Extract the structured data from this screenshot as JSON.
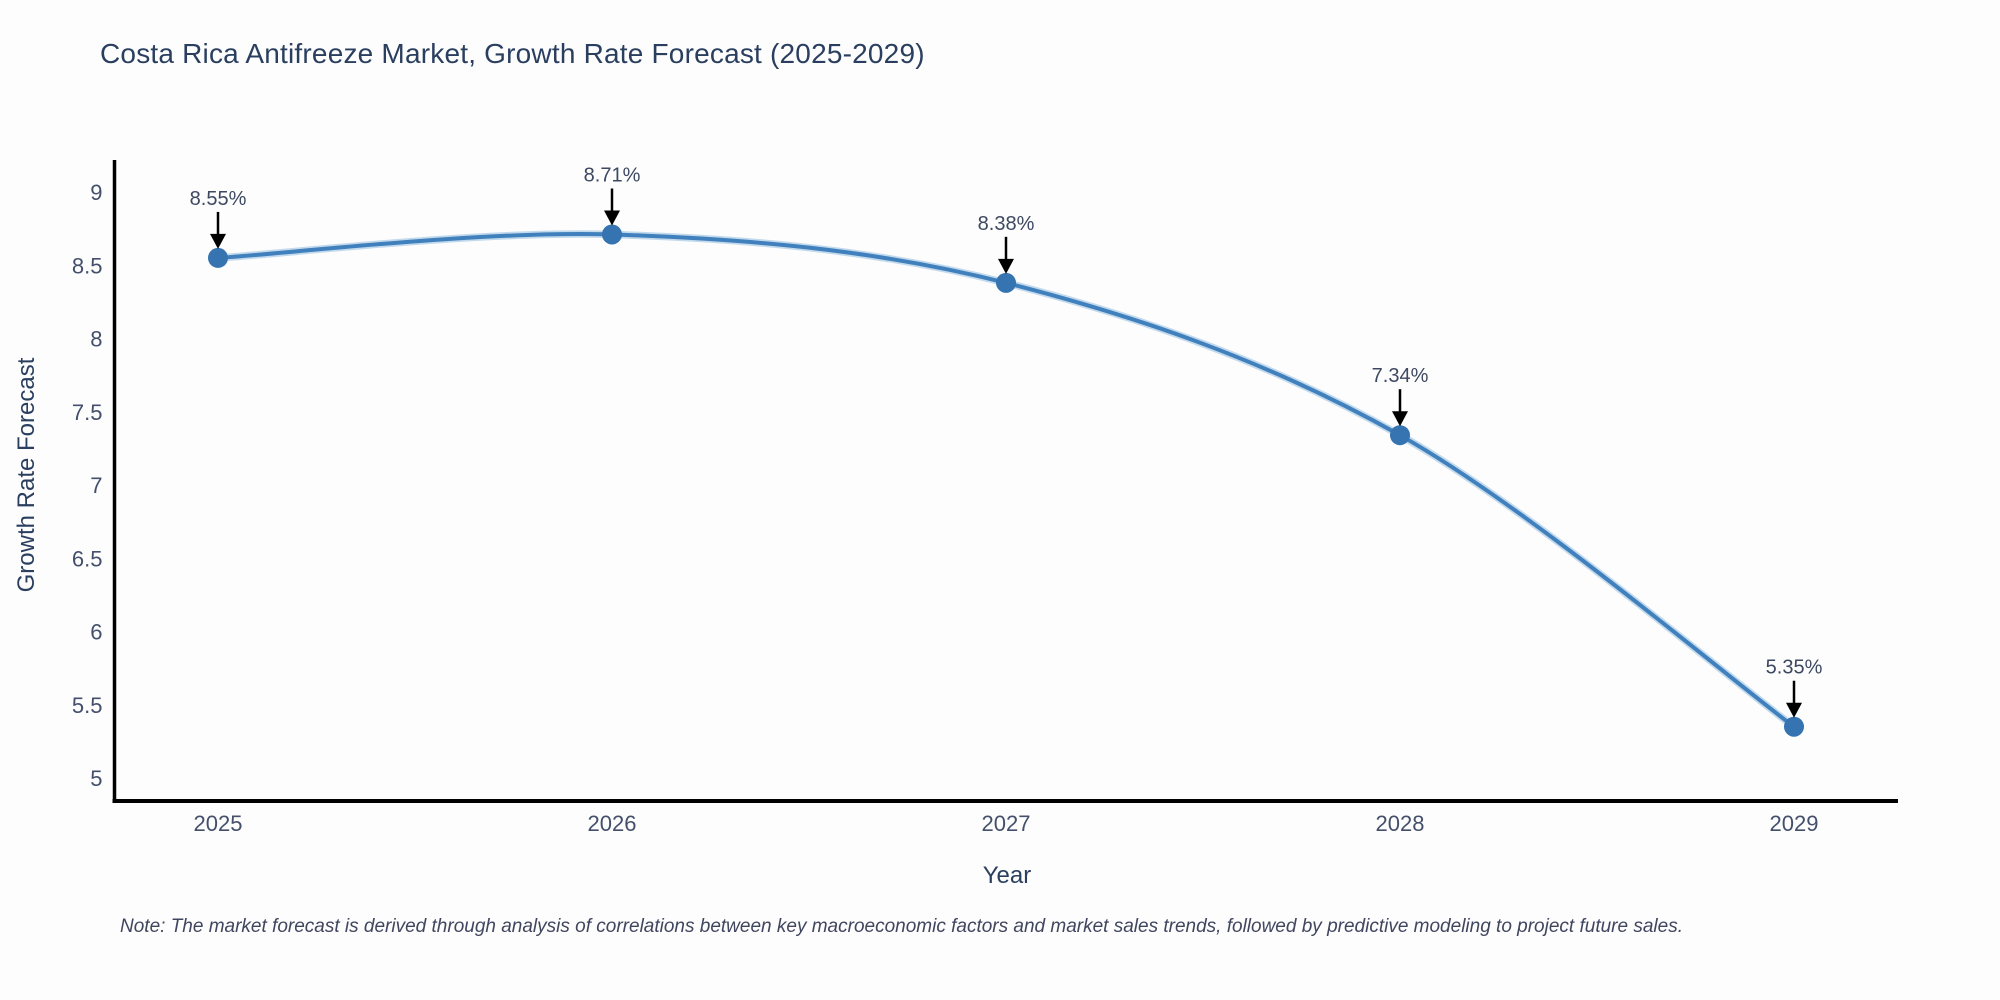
{
  "title": "Costa Rica Antifreeze Market, Growth Rate Forecast (2025-2029)",
  "note": "Note: The market forecast is derived through analysis of correlations between key macroeconomic factors and market sales trends, followed by predictive modeling to project future sales.",
  "chart_data": {
    "type": "line",
    "title": "Costa Rica Antifreeze Market, Growth Rate Forecast (2025-2029)",
    "xlabel": "Year",
    "ylabel": "Growth Rate Forecast",
    "x": [
      2025,
      2026,
      2027,
      2028,
      2029
    ],
    "y": [
      8.55,
      8.71,
      8.38,
      7.34,
      5.35
    ],
    "point_labels": [
      "8.55%",
      "8.71%",
      "8.38%",
      "7.34%",
      "5.35%"
    ],
    "yticks": [
      5,
      5.5,
      6,
      6.5,
      7,
      7.5,
      8,
      8.5,
      9
    ],
    "xticks": [
      "2025",
      "2026",
      "2027",
      "2028",
      "2029"
    ],
    "ylim": [
      4.85,
      9.22
    ],
    "grid": false,
    "legend": "none",
    "line_color": "#4080bd",
    "line_halo_color": "#8ab7dd",
    "marker_color": "#3573b1",
    "axis_color": "#000000",
    "annotation_arrow_color": "#000000"
  }
}
